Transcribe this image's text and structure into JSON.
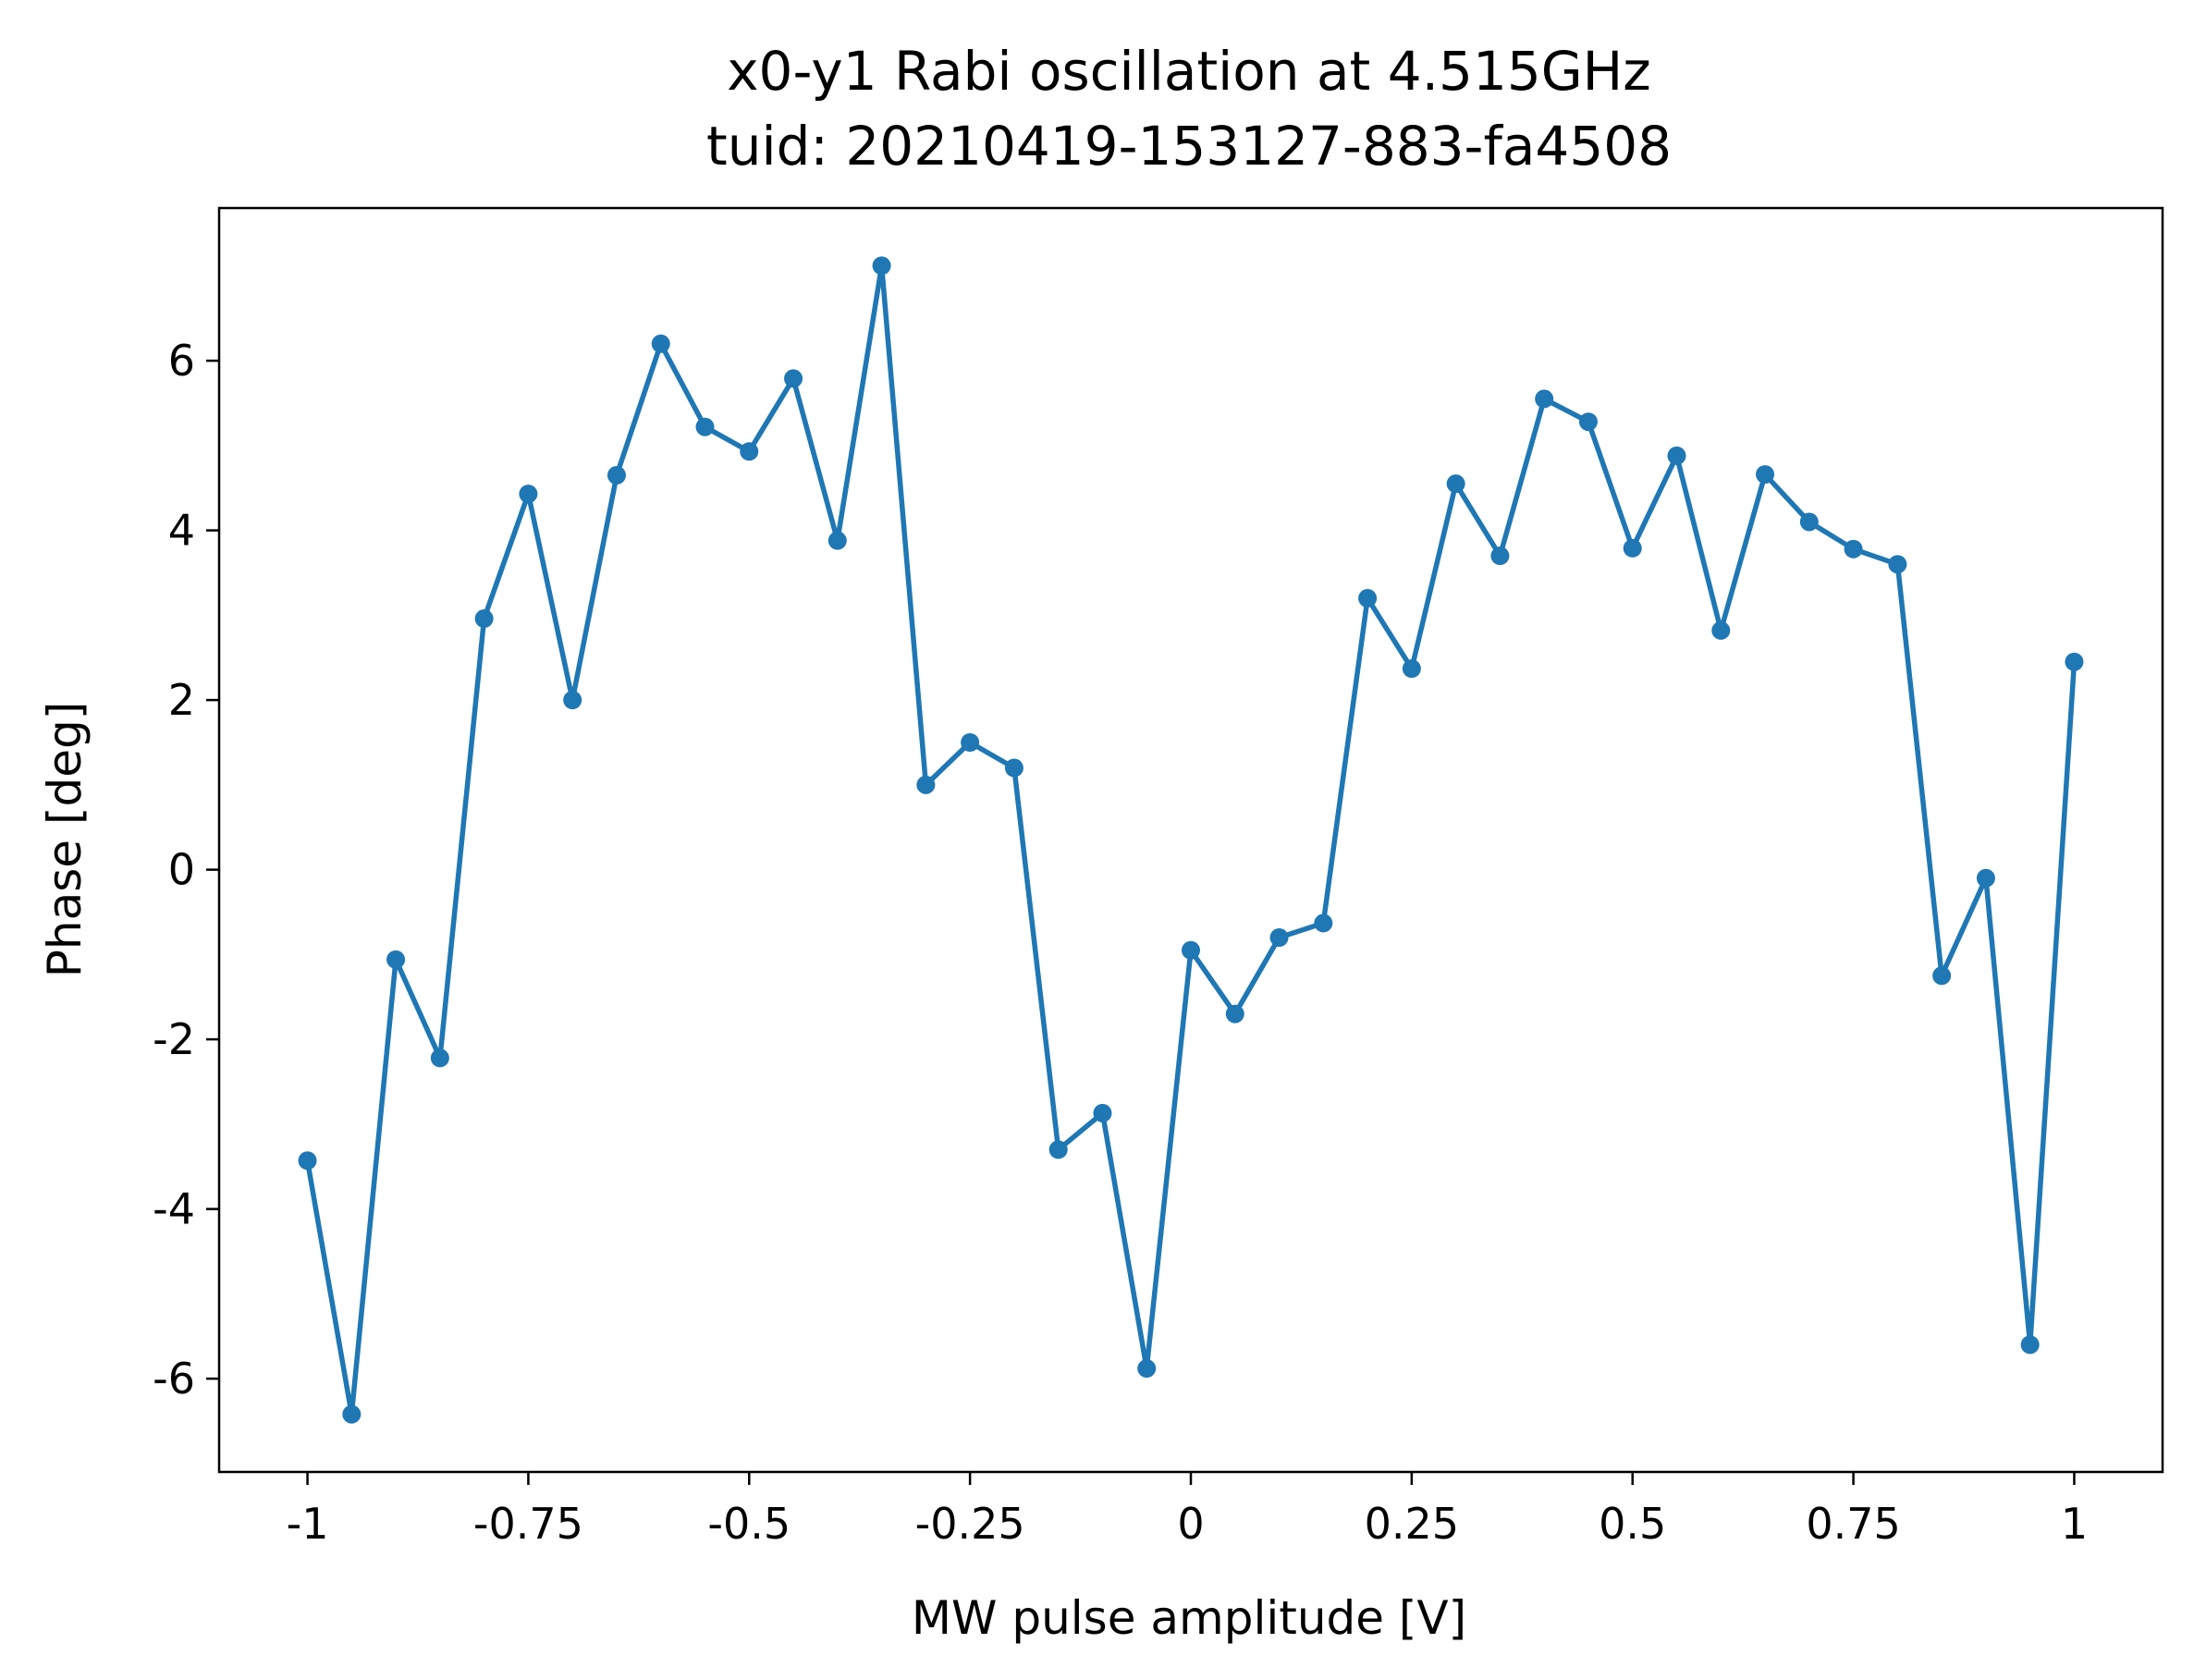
{
  "chart_data": {
    "type": "line",
    "title": "x0-y1 Rabi oscillation at 4.515GHz",
    "subtitle": "tuid: 20210419-153127-883-fa4508",
    "xlabel": "MW pulse amplitude [V]",
    "ylabel": "Phase [deg]",
    "xlim": [
      -1.1,
      1.1
    ],
    "ylim": [
      -7.1,
      7.8
    ],
    "xticks": [
      -1,
      -0.75,
      -0.5,
      -0.25,
      0,
      0.25,
      0.5,
      0.75,
      1
    ],
    "xtick_labels": [
      "-1",
      "-0.75",
      "-0.5",
      "-0.25",
      "0",
      "0.25",
      "0.5",
      "0.75",
      "1"
    ],
    "yticks": [
      -6,
      -4,
      -2,
      0,
      2,
      4,
      6
    ],
    "ytick_labels": [
      "-6",
      "-4",
      "-2",
      "0",
      "2",
      "4",
      "6"
    ],
    "grid": false,
    "color": "#1f77b4",
    "x": [
      -1,
      -0.95,
      -0.9,
      -0.85,
      -0.8,
      -0.75,
      -0.7,
      -0.65,
      -0.6,
      -0.55,
      -0.5,
      -0.45,
      -0.4,
      -0.35,
      -0.3,
      -0.25,
      -0.2,
      -0.15,
      -0.1,
      -0.05,
      0,
      0.05,
      0.1,
      0.15,
      0.2,
      0.25,
      0.3,
      0.35,
      0.4,
      0.45,
      0.5,
      0.55,
      0.6,
      0.65,
      0.7,
      0.75,
      0.8,
      0.85,
      0.9,
      0.95,
      1
    ],
    "y": [
      -3.43,
      -6.42,
      -1.06,
      -2.22,
      2.96,
      4.43,
      2.0,
      4.65,
      6.2,
      5.22,
      4.93,
      5.79,
      3.88,
      7.12,
      1.0,
      1.5,
      1.2,
      -3.3,
      -2.87,
      -5.88,
      -0.95,
      -1.7,
      -0.8,
      -0.63,
      3.2,
      2.37,
      4.55,
      3.7,
      5.55,
      5.28,
      3.79,
      4.88,
      2.82,
      4.66,
      4.1,
      3.78,
      3.6,
      -1.25,
      -0.1,
      -5.6,
      2.45
    ]
  }
}
